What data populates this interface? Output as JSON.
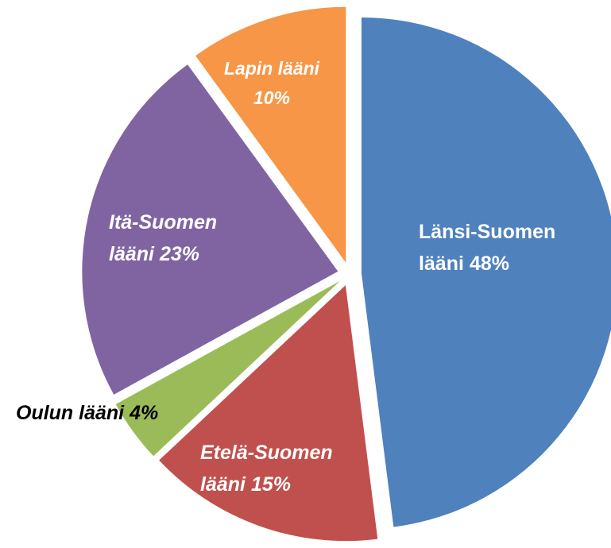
{
  "chart_data": {
    "type": "pie",
    "categories": [
      "Länsi-Suomen lääni",
      "Etelä-Suomen lääni",
      "Oulun lääni",
      "Itä-Suomen lääni",
      "Lapin lääni"
    ],
    "values": [
      48,
      15,
      4,
      23,
      10
    ],
    "value_labels": [
      "48%",
      "15%",
      "4%",
      "23%",
      "10%"
    ],
    "colors": [
      "#4f81bd",
      "#c0504d",
      "#9bbb59",
      "#8064a2",
      "#f79646"
    ]
  }
}
